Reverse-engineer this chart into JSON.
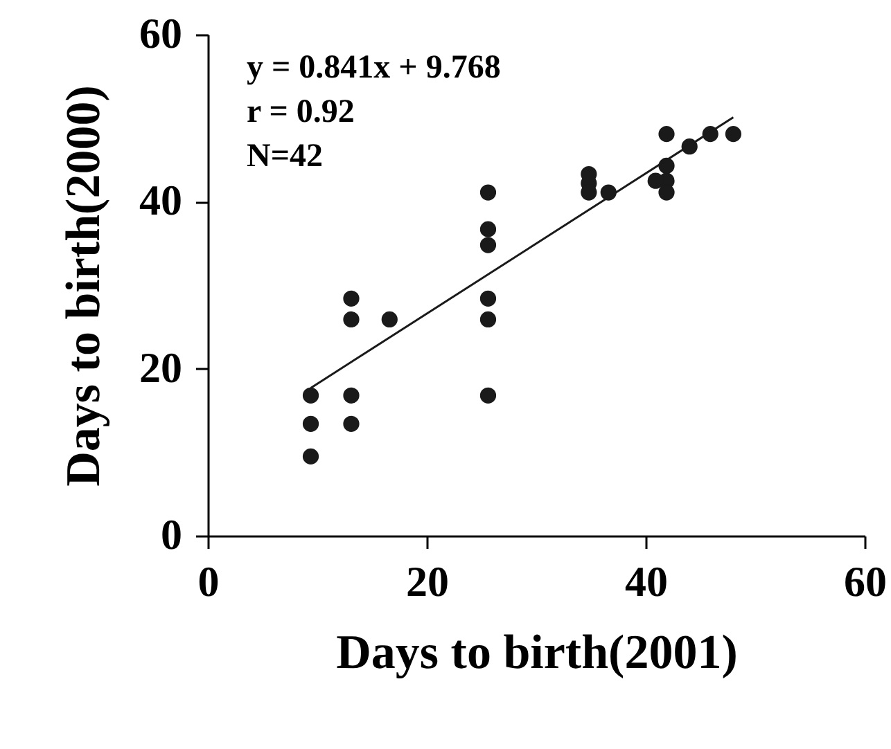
{
  "chart_data": {
    "type": "scatter",
    "xlabel": "Days to birth(2001)",
    "ylabel": "Days to birth(2000)",
    "xlim": [
      0,
      60
    ],
    "ylim": [
      0,
      60
    ],
    "xticks": [
      0,
      20,
      40,
      60
    ],
    "yticks": [
      0,
      20,
      40,
      60
    ],
    "annotations": [
      "y = 0.841x + 9.768",
      "r = 0.92",
      "N=42"
    ],
    "series": [
      {
        "type": "scatter",
        "marker": "circle",
        "color": "#1a1a1a",
        "x": [
          9.4,
          9.4,
          9.4,
          13.1,
          13.1,
          13.1,
          13.1,
          16.6,
          25.6,
          25.6,
          25.6,
          25.6,
          25.6,
          25.6,
          34.8,
          34.8,
          34.8,
          36.6,
          41.9,
          41.9,
          41.9,
          41.9,
          40.9,
          44.0,
          45.9,
          48.0
        ],
        "values": [
          16.8,
          13.4,
          9.5,
          28.4,
          25.9,
          16.8,
          13.4,
          25.9,
          41.1,
          36.7,
          34.8,
          28.4,
          25.9,
          16.8,
          43.3,
          42.2,
          41.1,
          41.1,
          48.1,
          44.3,
          42.5,
          41.1,
          42.5,
          46.6,
          48.1,
          48.1
        ]
      },
      {
        "type": "line",
        "color": "#1a1a1a",
        "x": [
          9.4,
          48.0
        ],
        "values": [
          17.7,
          50.1
        ]
      }
    ]
  }
}
